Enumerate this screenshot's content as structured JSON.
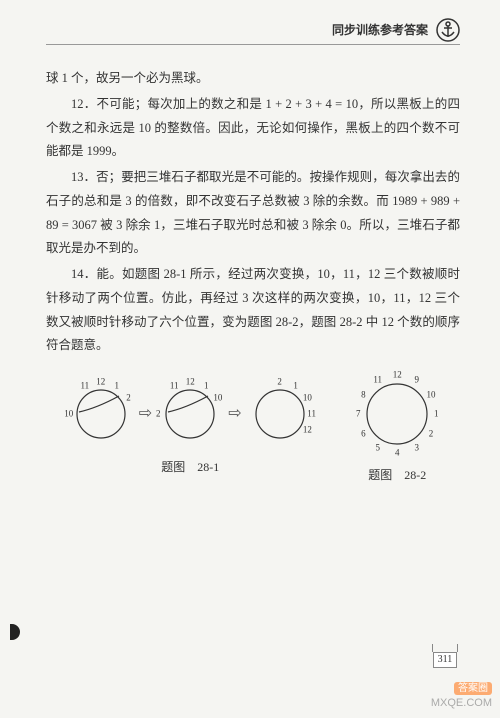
{
  "header": {
    "title": "同步训练参考答案"
  },
  "paragraphs": {
    "p0": "球 1 个，故另一个必为黑球。",
    "p1": "12．不可能；每次加上的数之和是 1 + 2 + 3 + 4 = 10，所以黑板上的四个数之和永远是 10 的整数倍。因此，无论如何操作，黑板上的四个数不可能都是 1999。",
    "p2": "13．否；要把三堆石子都取光是不可能的。按操作规则，每次拿出去的石子的总和是 3 的倍数，即不改变石子总数被 3 除的余数。而 1989 + 989 + 89 = 3067 被 3 除余 1，三堆石子取光时总和被 3 除余 0。所以，三堆石子都取光是办不到的。",
    "p3": "14．能。如题图 28-1 所示，经过两次变换，10，11，12 三个数被顺时针移动了两个位置。仿此，再经过 3 次这样的两次变换，10，11，12 三个数又被顺时针移动了六个位置，变为题图 28-2，题图 28-2 中 12 个数的顺序符合题意。"
  },
  "figures": {
    "fig1": {
      "caption": "题图　28-1",
      "circles": [
        {
          "outer_numbers": [
            {
              "label": "12",
              "angle": -90
            },
            {
              "label": "1",
              "angle": -60
            },
            {
              "label": "2",
              "angle": -30
            },
            {
              "label": "10",
              "angle": 180
            },
            {
              "label": "11",
              "angle": -120
            }
          ],
          "stroke": true
        },
        {
          "outer_numbers": [
            {
              "label": "12",
              "angle": -90
            },
            {
              "label": "1",
              "angle": -60
            },
            {
              "label": "10",
              "angle": -30
            },
            {
              "label": "2",
              "angle": 180
            },
            {
              "label": "11",
              "angle": -120
            }
          ],
          "stroke": true
        },
        {
          "outer_numbers": [
            {
              "label": "2",
              "angle": -90
            },
            {
              "label": "1",
              "angle": -60
            },
            {
              "label": "10",
              "angle": -30
            },
            {
              "label": "11",
              "angle": 0
            },
            {
              "label": "12",
              "angle": 30
            }
          ],
          "stroke": false
        }
      ],
      "radius": 24,
      "color": "#333",
      "line_width": 1.2
    },
    "fig2": {
      "caption": "题图　28-2",
      "radius": 30,
      "center_numbers": [
        {
          "label": "12",
          "angle": -90
        },
        {
          "label": "9",
          "angle": -60
        },
        {
          "label": "10",
          "angle": -30
        },
        {
          "label": "1",
          "angle": 0
        },
        {
          "label": "2",
          "angle": 30
        },
        {
          "label": "3",
          "angle": 60
        },
        {
          "label": "4",
          "angle": 90
        },
        {
          "label": "5",
          "angle": 120
        },
        {
          "label": "6",
          "angle": 150
        },
        {
          "label": "7",
          "angle": 180
        },
        {
          "label": "8",
          "angle": -150
        },
        {
          "label": "11",
          "angle": -120
        }
      ],
      "color": "#333",
      "line_width": 1.2
    }
  },
  "page_number": "311",
  "watermark": {
    "tag": "答案圈",
    "url": "MXQE.COM"
  }
}
